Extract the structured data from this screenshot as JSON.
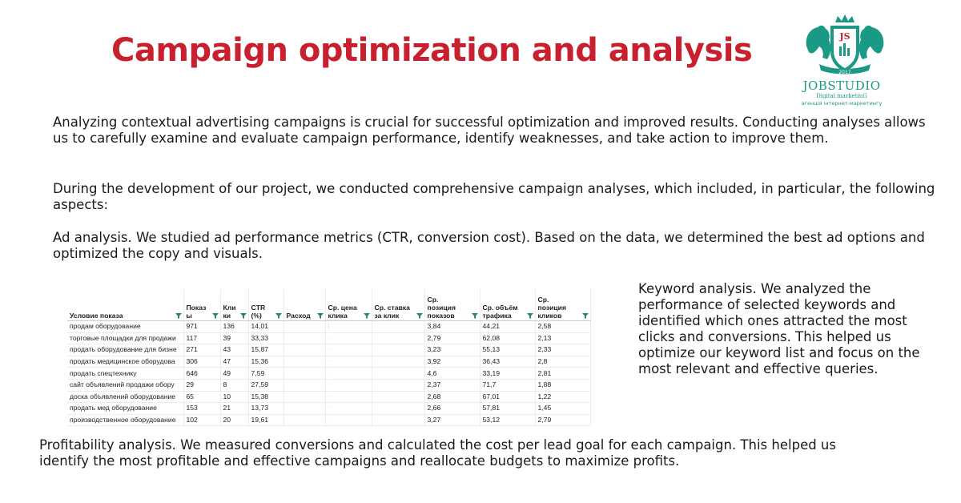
{
  "title": "Campaign optimization and analysis",
  "paragraphs": {
    "intro": "Analyzing contextual advertising campaigns is crucial for successful optimization and improved results. Conducting analyses allows us to carefully examine and evaluate campaign performance, identify weaknesses, and take action to improve them.",
    "development": "During the development of our project, we conducted comprehensive campaign analyses, which included, in particular, the following aspects:",
    "ad_analysis": "Ad analysis. We studied ad performance metrics (CTR, conversion cost). Based on the data, we determined the best ad options and optimized the copy and visuals.",
    "keyword_analysis": "Keyword analysis. We analyzed the performance of selected keywords and identified which ones attracted the most clicks and conversions. This helped us optimize our keyword list and focus on the most relevant and effective queries.",
    "profitability": "Profitability analysis. We measured conversions and calculated the cost per lead goal for each campaign. This helped us identify the most profitable and effective campaigns and reallocate budgets to maximize profits."
  },
  "logo": {
    "monogram": "JS",
    "year": "2017",
    "name": "JOBSTUDIO",
    "subtitle": "Digital marketinG",
    "tagline": "агенція інтернет-маркетингу",
    "color": "#1a9a85"
  },
  "table": {
    "columns": [
      "Условие показа",
      "Показ\nы",
      "Кли\nки",
      "CTR\n(%)",
      "Расход",
      "Ср. цена\nклика",
      "Ср. ставка\nза клик",
      "Ср.\nпозиция\nпоказов",
      "Ср. объём\nтрафика",
      "Ср.\nпозиция\nкликов"
    ],
    "rows": [
      [
        "продам оборудование",
        "971",
        "136",
        "14,01",
        "",
        "¦",
        "",
        "3,84",
        "44,21",
        "2,58"
      ],
      [
        "торговые площадки для продажи",
        "117",
        "39",
        "33,33",
        "",
        "·:·",
        "",
        "2,79",
        "62,08",
        "2,13"
      ],
      [
        "продать оборудование для бизне",
        "271",
        "43",
        "15,87",
        "",
        "··",
        "",
        "3,23",
        "55,13",
        "2,33"
      ],
      [
        "продать медицинское оборудова",
        "306",
        "47",
        "15,36",
        "",
        "··",
        "",
        "3,92",
        "36,43",
        "2,8"
      ],
      [
        "продать спецтехнику",
        "646",
        "49",
        "7,59",
        "",
        "·",
        "",
        "4,6",
        "33,19",
        "2,81"
      ],
      [
        "сайт объявлений продажи обору",
        "29",
        "8",
        "27,59",
        "",
        "··",
        "",
        "2,37",
        "71,7",
        "1,88"
      ],
      [
        "доска объявлений оборудование",
        "65",
        "10",
        "15,38",
        "",
        "·:·",
        "",
        "2,68",
        "67,01",
        "1,22"
      ],
      [
        "продать мед оборудование",
        "153",
        "21",
        "13,73",
        "",
        "··",
        "",
        "2,66",
        "57,81",
        "1,45"
      ],
      [
        "производственное оборудование",
        "102",
        "20",
        "19,61",
        "",
        "·",
        "",
        "3,27",
        "53,12",
        "2,79"
      ]
    ]
  }
}
